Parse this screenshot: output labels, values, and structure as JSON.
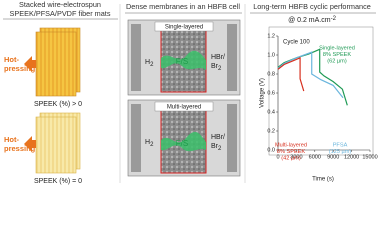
{
  "panel1": {
    "title": [
      "Stacked wire-electrospun",
      "SPEEK/PFSA/PVDF fiber mats"
    ],
    "top_action": [
      "Hot-",
      "pressing"
    ],
    "top_caption": "SPEEK (%) > 0",
    "bottom_action": [
      "Hot-",
      "pressing"
    ],
    "bottom_caption": "SPEEK (%) = 0"
  },
  "panel2": {
    "title": "Dense membranes in an HBFB cell",
    "top_label": "Single-layered",
    "bottom_label": "Multi-layered",
    "left_gas": "H",
    "left_sub": "2",
    "right_gas": [
      "HBr/",
      "Br"
    ],
    "right_sub": "2",
    "membrane": "F/S"
  },
  "chart_data": {
    "type": "line",
    "title": "Long-term HBFB cyclic performance",
    "subtitle": "@ 0.2 mA.cm",
    "subtitle_sup": "-2",
    "annotation": "Cycle 100",
    "x_label": "Time (s)",
    "y_label": "Voltage (V)",
    "xlim": [
      0,
      15000
    ],
    "ylim": [
      0,
      1.2
    ],
    "xticks": [
      0,
      3000,
      6000,
      9000,
      12000,
      15000
    ],
    "yticks": [
      {
        "value": 0,
        "label": "0.0"
      },
      0.2,
      0.4,
      0.6,
      0.8,
      {
        "value": 1,
        "label": "1.0"
      },
      1.2
    ],
    "series": [
      {
        "name": [
          "Single-layered",
          "8% SPEEK",
          "(62 µm)"
        ],
        "color": "#1f9a55",
        "x": [
          0,
          1000,
          3000,
          5000,
          6800,
          6800,
          7500,
          9000,
          10500,
          11300
        ],
        "values": [
          0.87,
          0.92,
          0.97,
          1.01,
          1.06,
          0.82,
          0.78,
          0.72,
          0.64,
          0.47
        ]
      },
      {
        "name": [
          "PFSA",
          "(125 µm)"
        ],
        "color": "#6bb6dd",
        "x": [
          0,
          1000,
          3000,
          5500,
          5500,
          7000,
          9000,
          10600
        ],
        "values": [
          0.86,
          0.91,
          0.97,
          1.03,
          0.8,
          0.74,
          0.68,
          0.55
        ]
      },
      {
        "name": [
          "Multi-layered",
          "8% SPEEK",
          "(42 µm)"
        ],
        "color": "#d7301f",
        "x": [
          0,
          1000,
          2500,
          3600,
          3600,
          4200
        ],
        "values": [
          0.85,
          0.9,
          0.94,
          0.97,
          0.75,
          0.62
        ]
      }
    ]
  }
}
